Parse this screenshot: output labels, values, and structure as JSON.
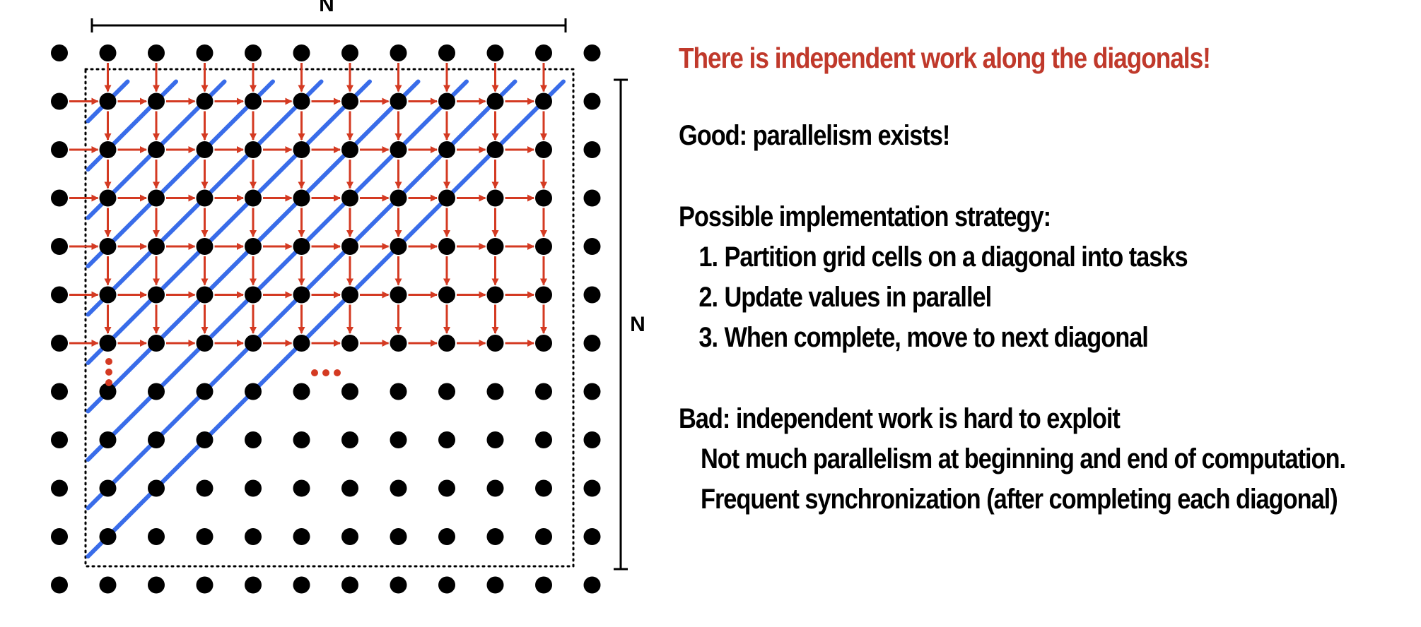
{
  "diagram": {
    "top_dimension_label": "N",
    "side_dimension_label": "N",
    "row_ellipsis": "...",
    "column_ellipsis": "⋮",
    "colors": {
      "grid_point": "#000000",
      "dependency_arrow": "#d43a22",
      "diagonal_stroke": "#2f65e8",
      "boundary": "#000000"
    }
  },
  "text": {
    "headline": "There is independent work along the diagonals!",
    "headline_color": "#c0392b",
    "good": "Good: parallelism exists!",
    "strategy_title": "Possible implementation strategy:",
    "steps": [
      {
        "number": "1.",
        "text": "Partition grid cells on a diagonal into tasks"
      },
      {
        "number": "2.",
        "text": "Update values in parallel"
      },
      {
        "number": "3.",
        "text": "When complete, move to next diagonal"
      }
    ],
    "bad": "Bad: independent work is hard to exploit",
    "bad_points": [
      "Not much parallelism at beginning and end of computation.",
      "Frequent synchronization (after completing each diagonal)"
    ]
  }
}
